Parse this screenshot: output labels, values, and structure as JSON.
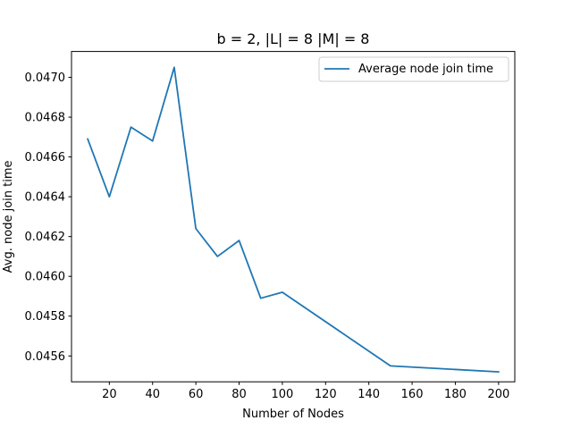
{
  "chart_data": {
    "type": "line",
    "title": "b = 2, |L| = 8 |M| = 8",
    "xlabel": "Number of Nodes",
    "ylabel": "Avg. node join time",
    "xlim": [
      2.5,
      207.5
    ],
    "ylim": [
      0.04547,
      0.04713
    ],
    "xticks": [
      20,
      40,
      60,
      80,
      100,
      120,
      140,
      160,
      180,
      200
    ],
    "yticks": [
      0.0456,
      0.0458,
      0.046,
      0.0462,
      0.0464,
      0.0466,
      0.0468,
      0.047
    ],
    "ytick_labels": [
      "0.0456",
      "0.0458",
      "0.0460",
      "0.0462",
      "0.0464",
      "0.0466",
      "0.0468",
      "0.0470"
    ],
    "grid": false,
    "legend_position": "top-right",
    "series": [
      {
        "name": "Average node join time",
        "color": "#1f77b4",
        "x": [
          10,
          20,
          30,
          40,
          50,
          60,
          70,
          80,
          90,
          100,
          150,
          200
        ],
        "y": [
          0.04669,
          0.0464,
          0.04675,
          0.04668,
          0.04705,
          0.04624,
          0.0461,
          0.04618,
          0.04589,
          0.04592,
          0.04555,
          0.04552
        ]
      }
    ]
  }
}
